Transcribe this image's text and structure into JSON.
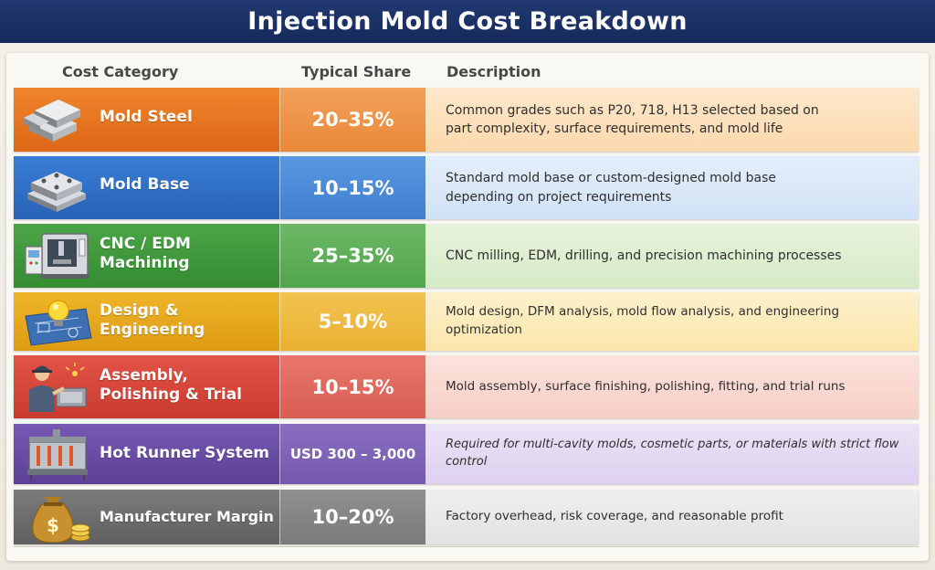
{
  "title": "Injection Mold Cost Breakdown",
  "headers": {
    "category": "Cost Category",
    "share": "Typical Share",
    "description": "Description"
  },
  "rows": [
    {
      "icon": "steel-bars-icon",
      "category": "Mold Steel",
      "share": "20–35%",
      "description_1": "Common grades such as P20, 718, H13 selected based on",
      "description_2": "part complexity, surface requirements, and mold life",
      "color": "#e8731f"
    },
    {
      "icon": "mold-base-icon",
      "category": "Mold Base",
      "share": "10–15%",
      "description_1": "Standard mold base or custom-designed mold base",
      "description_2": "depending on project requirements",
      "color": "#2e6fc4"
    },
    {
      "icon": "cnc-machine-icon",
      "category_1": "CNC / EDM",
      "category_2": "Machining",
      "share": "25–35%",
      "description_1": "CNC milling, EDM, drilling, and precision machining processes",
      "color": "#3e9a3a"
    },
    {
      "icon": "lightbulb-blueprint-icon",
      "category_1": "Design &",
      "category_2": "Engineering",
      "share": "5–10%",
      "description_1": "Mold design, DFM analysis, mold flow analysis, and engineering optimization",
      "color": "#e6a819"
    },
    {
      "icon": "worker-assembly-icon",
      "category_1": "Assembly,",
      "category_2": "Polishing & Trial",
      "share": "10–15%",
      "description_1": "Mold assembly, surface finishing, polishing, fitting, and trial runs",
      "color": "#d8473b"
    },
    {
      "icon": "hot-runner-icon",
      "category": "Hot Runner System",
      "share": "USD 300 – 3,000",
      "description_1": "Required for multi-cavity molds, cosmetic parts, or materials with strict flow control",
      "color": "#6a4ea6"
    },
    {
      "icon": "money-bag-icon",
      "category": "Manufacturer Margin",
      "share": "10–20%",
      "description_1": "Factory overhead, risk coverage, and reasonable profit",
      "color": "#6f6f6f"
    }
  ]
}
